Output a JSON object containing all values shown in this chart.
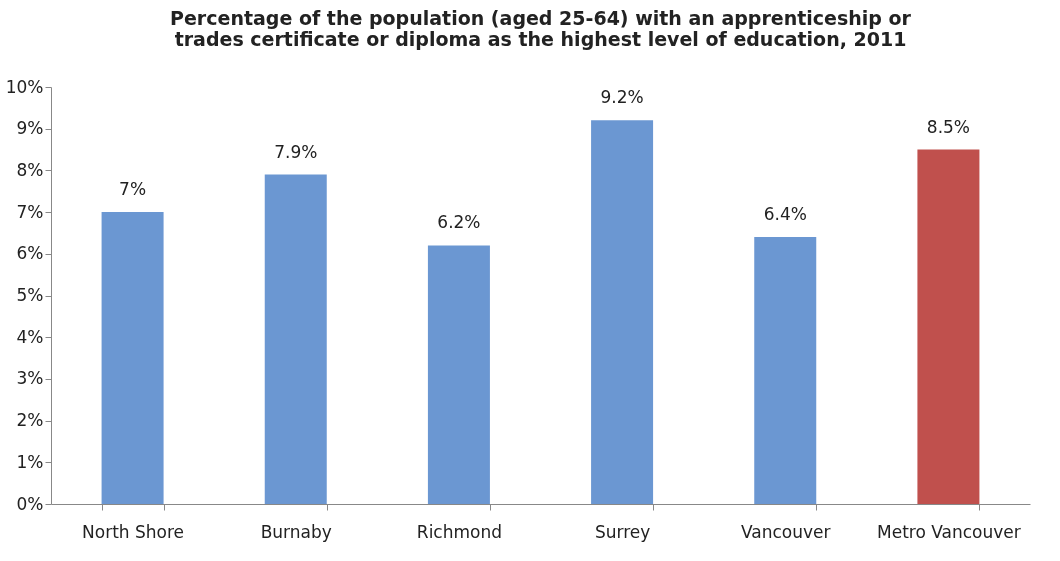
{
  "chart_data": {
    "type": "bar",
    "title": "Percentage of the population (aged 25-64) with an apprenticeship or trades certificate or diploma as the highest level of education, 2011",
    "categories": [
      "North Shore",
      "Burnaby",
      "Richmond",
      "Surrey",
      "Vancouver",
      "Metro Vancouver"
    ],
    "values": [
      7,
      7.9,
      6.2,
      9.2,
      6.4,
      8.5
    ],
    "value_labels": [
      "7%",
      "7.9%",
      "6.2%",
      "9.2%",
      "6.4%",
      "8.5%"
    ],
    "colors": [
      "#6b97d2",
      "#6b97d2",
      "#6b97d2",
      "#6b97d2",
      "#6b97d2",
      "#c0504d"
    ],
    "ylim": [
      0,
      10
    ],
    "yticks": [
      {
        "value": 0,
        "label": "0%"
      },
      {
        "value": 1,
        "label": "1%"
      },
      {
        "value": 2,
        "label": "2%"
      },
      {
        "value": 3,
        "label": "3%"
      },
      {
        "value": 4,
        "label": "4%"
      },
      {
        "value": 5,
        "label": "5%"
      },
      {
        "value": 6,
        "label": "6%"
      },
      {
        "value": 7,
        "label": "7%"
      },
      {
        "value": 8,
        "label": "8%"
      },
      {
        "value": 9,
        "label": "9%"
      },
      {
        "value": 10,
        "label": "10%"
      }
    ],
    "grid": false,
    "legend": false
  }
}
